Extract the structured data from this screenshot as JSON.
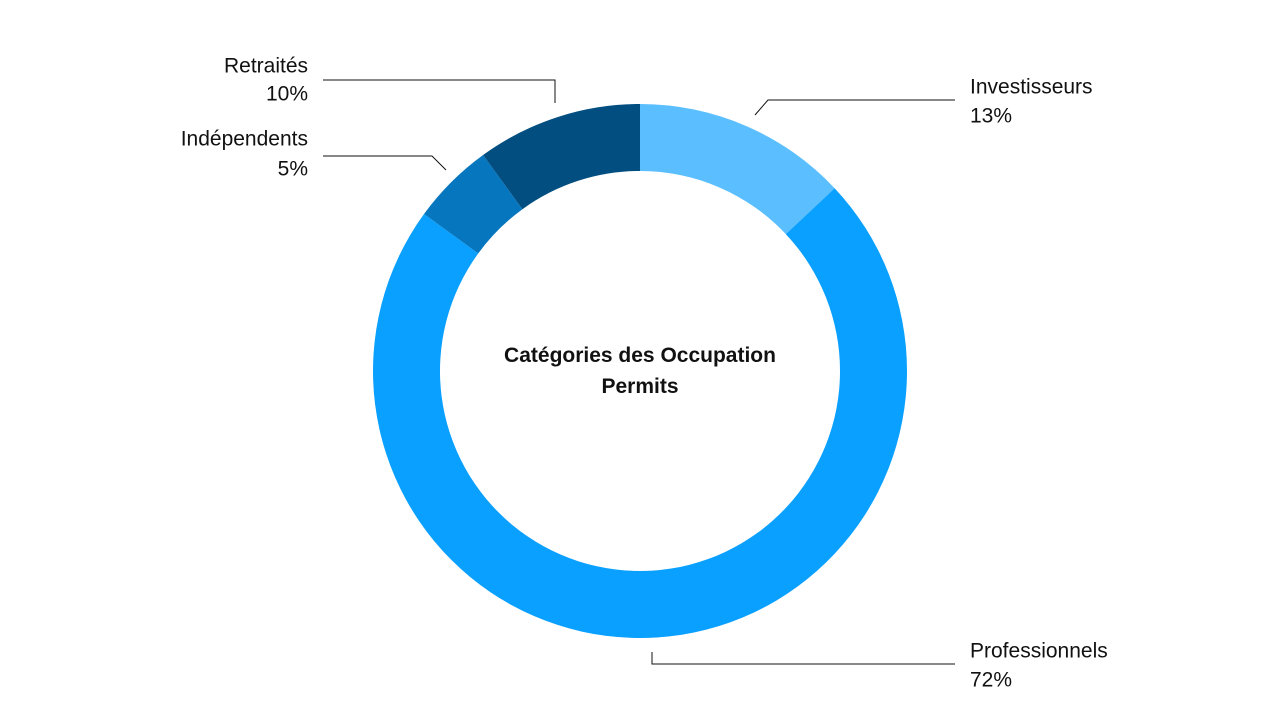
{
  "chart_data": {
    "type": "donut",
    "title": "Catégories des Occupation Permits",
    "categories": [
      "Investisseurs",
      "Professionnels",
      "Indépendents",
      "Retraités"
    ],
    "values": [
      13,
      72,
      5,
      10
    ],
    "value_labels": [
      "13%",
      "72%",
      "5%",
      "10%"
    ],
    "colors": [
      "#5bbfff",
      "#0aa0ff",
      "#0677bf",
      "#024e80"
    ]
  }
}
